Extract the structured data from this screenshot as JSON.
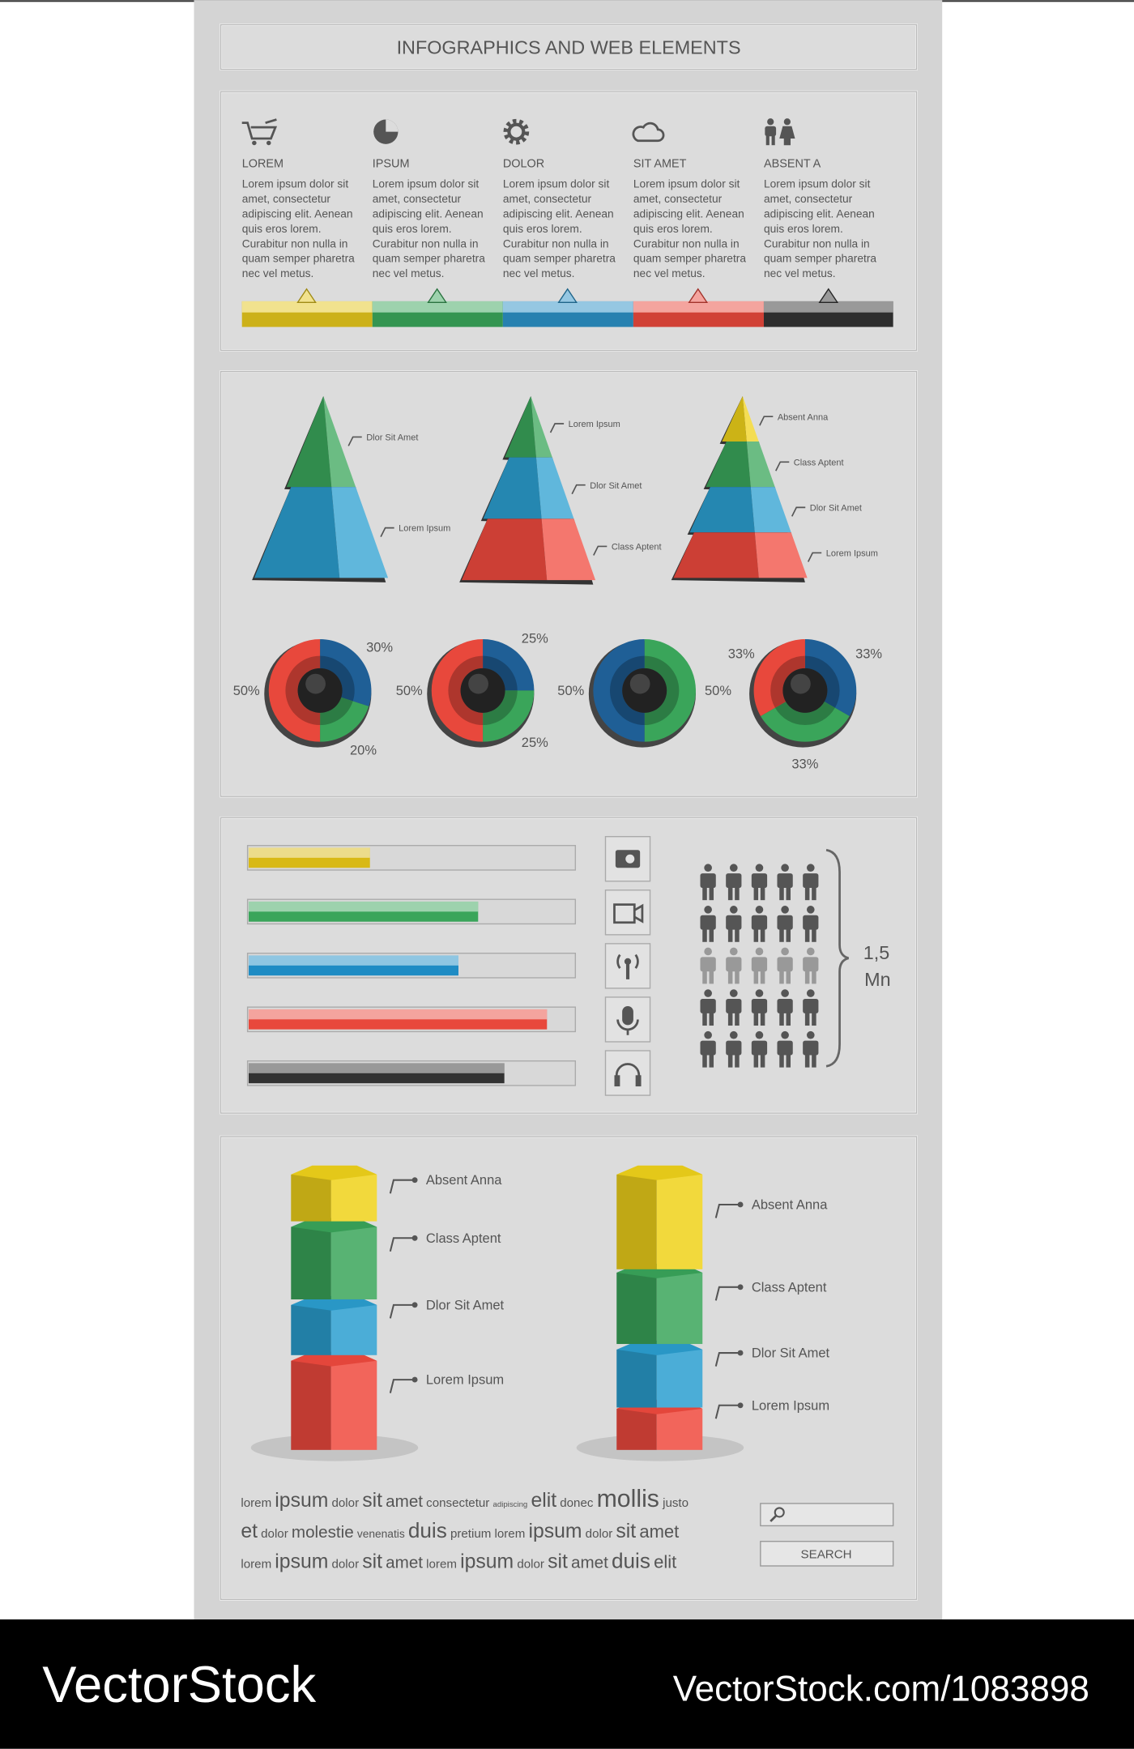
{
  "header": {
    "title": "INFOGRAPHICS AND WEB ELEMENTS"
  },
  "features": [
    {
      "heading": "LOREM",
      "color": "#e3c51c",
      "lines": [
        "Lorem ipsum dolor sit",
        "amet, consectetur",
        "adipiscing elit. Aenean",
        "quis eros lorem.",
        "Curabitur non nulla in",
        "quam semper pharetra",
        "nec vel metus."
      ]
    },
    {
      "heading": "IPSUM",
      "color": "#3aa55a",
      "lines": [
        "Lorem ipsum dolor sit",
        "amet, consectetur",
        "adipiscing elit. Aenean",
        "quis eros lorem.",
        "Curabitur non nulla in",
        "quam semper pharetra",
        "nec vel metus."
      ]
    },
    {
      "heading": "DOLOR",
      "color": "#2b8fc4",
      "lines": [
        "Lorem ipsum dolor sit",
        "amet, consectetur",
        "adipiscing elit. Aenean",
        "quis eros lorem.",
        "Curabitur non nulla in",
        "quam semper pharetra",
        "nec vel metus."
      ]
    },
    {
      "heading": "SIT AMET",
      "color": "#e8483c",
      "lines": [
        "Lorem ipsum dolor sit",
        "amet, consectetur",
        "adipiscing elit. Aenean",
        "quis eros lorem.",
        "Curabitur non nulla in",
        "quam semper pharetra",
        "nec vel metus."
      ]
    },
    {
      "heading": "ABSENT A",
      "color": "#333333",
      "lines": [
        "Lorem ipsum dolor sit",
        "amet, consectetur",
        "adipiscing elit. Aenean",
        "quis eros lorem.",
        "Curabitur non nulla in",
        "quam semper pharetra",
        "nec vel metus."
      ]
    }
  ],
  "pyramids": [
    {
      "labels": [
        "Dlor Sit Amet",
        "Lorem Ipsum"
      ],
      "colors": [
        "#3aa55a",
        "#2b9fd0"
      ]
    },
    {
      "labels": [
        "Lorem Ipsum",
        "Dlor Sit Amet",
        "Class Aptent"
      ],
      "colors": [
        "#3aa55a",
        "#2b9fd0",
        "#f04a3e"
      ]
    },
    {
      "labels": [
        "Absent Anna",
        "Class Aptent",
        "Dlor Sit Amet",
        "Lorem Ipsum"
      ],
      "colors": [
        "#f0d21a",
        "#3aa55a",
        "#2b9fd0",
        "#f04a3e"
      ]
    }
  ],
  "donuts": [
    {
      "values": [
        30,
        20,
        50
      ],
      "value_labels": [
        "30%",
        "20%",
        "50%"
      ],
      "colors": [
        "#1f5f96",
        "#3aa55a",
        "#e8483c"
      ]
    },
    {
      "values": [
        25,
        25,
        50
      ],
      "value_labels": [
        "25%",
        "25%",
        "50%"
      ],
      "colors": [
        "#1f5f96",
        "#3aa55a",
        "#e8483c"
      ]
    },
    {
      "values": [
        50,
        50
      ],
      "value_labels": [
        "50%",
        "50%"
      ],
      "colors": [
        "#3aa55a",
        "#1f5f96"
      ]
    },
    {
      "values": [
        33,
        33,
        33
      ],
      "value_labels": [
        "33%",
        "33%",
        "33%"
      ],
      "colors": [
        "#1f5f96",
        "#3aa55a",
        "#e8483c"
      ]
    }
  ],
  "progress_bars": {
    "values": [
      0.37,
      0.7,
      0.64,
      0.91,
      0.78
    ],
    "colors": [
      "#d8b916",
      "#3aa55a",
      "#1f8cc4",
      "#e8483c",
      "#333333"
    ]
  },
  "people": {
    "number": "1,5",
    "unit": "Mn"
  },
  "towers": [
    {
      "labels": [
        "Absent Anna",
        "Class Aptent",
        "Dlor Sit Amet",
        "Lorem Ipsum"
      ],
      "colors": [
        "#f0d21a",
        "#3aa55a",
        "#2b9fd0",
        "#f04a3e"
      ]
    },
    {
      "labels": [
        "Absent Anna",
        "Class Aptent",
        "Dlor Sit Amet",
        "Lorem Ipsum"
      ],
      "colors": [
        "#f0d21a",
        "#3aa55a",
        "#2b9fd0",
        "#f04a3e"
      ]
    }
  ],
  "word_cloud": [
    [
      "lorem",
      "ipsum",
      "dolor",
      "sit",
      "amet",
      "consectetur",
      "adipiscing",
      "elit",
      "donec",
      "mollis",
      "justo"
    ],
    [
      "et",
      "dolor",
      "molestie",
      "venenatis",
      "duis",
      "pretium",
      "lorem",
      "ipsum",
      "dolor",
      "sit",
      "amet"
    ],
    [
      "lorem",
      "ipsum",
      "dolor",
      "sit",
      "amet",
      "lorem",
      "ipsum",
      "dolor",
      "sit",
      "amet",
      "duis",
      "elit"
    ]
  ],
  "search": {
    "button": "SEARCH"
  },
  "footer": {
    "brand": "VectorStock",
    "url": "VectorStock.com/1083898"
  }
}
